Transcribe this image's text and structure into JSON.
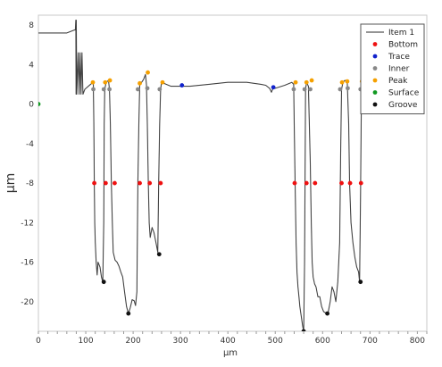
{
  "chart_data": {
    "type": "scatter",
    "xlabel": "µm",
    "ylabel": "µm",
    "xlim": [
      0,
      820
    ],
    "ylim": [
      -23,
      9
    ],
    "x_ticks": [
      0,
      100,
      200,
      300,
      400,
      500,
      600,
      700,
      800
    ],
    "y_ticks": [
      8,
      4,
      0,
      -4,
      -8,
      -12,
      -16,
      -20
    ],
    "grid": true,
    "legend_position": "top-right",
    "legend": [
      {
        "label": "Item 1",
        "color": "#555555",
        "marker": "line"
      },
      {
        "label": "Bottom",
        "color": "#ee1111",
        "marker": "dot"
      },
      {
        "label": "Trace",
        "color": "#1122cc",
        "marker": "dot"
      },
      {
        "label": "Inner",
        "color": "#888888",
        "marker": "dot"
      },
      {
        "label": "Peak",
        "color": "#f5a000",
        "marker": "dot"
      },
      {
        "label": "Surface",
        "color": "#119922",
        "marker": "dot"
      },
      {
        "label": "Groove",
        "color": "#111111",
        "marker": "dot"
      }
    ],
    "series": [
      {
        "name": "Item 1",
        "kind": "line",
        "color": "#555555",
        "points": [
          [
            0,
            7.2
          ],
          [
            60,
            7.2
          ],
          [
            76,
            7.5
          ],
          [
            78,
            7.5
          ],
          [
            79,
            8.5
          ],
          [
            79.5,
            1.0
          ],
          [
            80,
            8.5
          ],
          [
            81,
            1.0
          ],
          [
            84,
            5.2
          ],
          [
            86,
            1.0
          ],
          [
            88,
            5.2
          ],
          [
            90,
            1.0
          ],
          [
            92,
            5.2
          ],
          [
            94,
            1.0
          ],
          [
            98,
            1.5
          ],
          [
            110,
            2.0
          ],
          [
            116,
            2.2
          ],
          [
            117,
            -2
          ],
          [
            118,
            -8
          ],
          [
            119,
            -12
          ],
          [
            120,
            -14
          ],
          [
            122,
            -16
          ],
          [
            124,
            -17.3
          ],
          [
            126,
            -16
          ],
          [
            130,
            -16.5
          ],
          [
            133,
            -17.5
          ],
          [
            136,
            -18.0
          ],
          [
            138,
            -12
          ],
          [
            139,
            -2
          ],
          [
            140,
            1.5
          ],
          [
            143,
            2.2
          ],
          [
            148,
            2.4
          ],
          [
            150,
            1.5
          ],
          [
            152,
            -2
          ],
          [
            154,
            -8
          ],
          [
            156,
            -12
          ],
          [
            158,
            -15
          ],
          [
            162,
            -15.8
          ],
          [
            166,
            -16
          ],
          [
            170,
            -16.4
          ],
          [
            174,
            -17
          ],
          [
            178,
            -17.5
          ],
          [
            182,
            -19
          ],
          [
            186,
            -20.5
          ],
          [
            190,
            -21.2
          ],
          [
            194,
            -20.6
          ],
          [
            198,
            -19.8
          ],
          [
            202,
            -19.9
          ],
          [
            205,
            -20.4
          ],
          [
            208,
            -19
          ],
          [
            210,
            -8
          ],
          [
            212,
            -2
          ],
          [
            214,
            2.0
          ],
          [
            218,
            2.2
          ],
          [
            222,
            2.5
          ],
          [
            226,
            3.0
          ],
          [
            228,
            2.0
          ],
          [
            230,
            -2
          ],
          [
            232,
            -8
          ],
          [
            234,
            -12
          ],
          [
            236,
            -13.5
          ],
          [
            240,
            -12.5
          ],
          [
            244,
            -13
          ],
          [
            248,
            -14
          ],
          [
            252,
            -15
          ],
          [
            254,
            -8
          ],
          [
            256,
            -2
          ],
          [
            258,
            1.5
          ],
          [
            260,
            2.2
          ],
          [
            280,
            1.8
          ],
          [
            320,
            1.8
          ],
          [
            360,
            2.0
          ],
          [
            400,
            2.2
          ],
          [
            440,
            2.2
          ],
          [
            470,
            2.0
          ],
          [
            480,
            1.9
          ],
          [
            488,
            1.6
          ],
          [
            492,
            1.2
          ],
          [
            496,
            1.7
          ],
          [
            500,
            1.6
          ],
          [
            520,
            1.9
          ],
          [
            535,
            2.2
          ],
          [
            539,
            2.0
          ],
          [
            540,
            -2
          ],
          [
            542,
            -8
          ],
          [
            544,
            -14
          ],
          [
            546,
            -17
          ],
          [
            548,
            -18.5
          ],
          [
            550,
            -19.5
          ],
          [
            552,
            -20.5
          ],
          [
            555,
            -21.5
          ],
          [
            558,
            -22.5
          ],
          [
            560,
            -23
          ],
          [
            562,
            -16
          ],
          [
            564,
            1.5
          ],
          [
            566,
            2.2
          ],
          [
            570,
            1.8
          ],
          [
            574,
            -6
          ],
          [
            576,
            -12
          ],
          [
            578,
            -16
          ],
          [
            580,
            -17.5
          ],
          [
            583,
            -18.2
          ],
          [
            586,
            -18.5
          ],
          [
            590,
            -19.5
          ],
          [
            594,
            -19.5
          ],
          [
            598,
            -20.5
          ],
          [
            602,
            -21
          ],
          [
            608,
            -21.2
          ],
          [
            612,
            -21
          ],
          [
            616,
            -20
          ],
          [
            620,
            -18.5
          ],
          [
            624,
            -19
          ],
          [
            628,
            -20
          ],
          [
            632,
            -18
          ],
          [
            636,
            -14
          ],
          [
            638,
            -5
          ],
          [
            640,
            1.5
          ],
          [
            643,
            2.2
          ],
          [
            647,
            2.4
          ],
          [
            652,
            2.2
          ],
          [
            655,
            -2
          ],
          [
            657,
            -8
          ],
          [
            660,
            -12
          ],
          [
            664,
            -14
          ],
          [
            668,
            -15.5
          ],
          [
            672,
            -16.5
          ],
          [
            676,
            -17
          ],
          [
            678,
            -18
          ],
          [
            680,
            -10
          ],
          [
            682,
            1.5
          ],
          [
            684,
            2.3
          ]
        ]
      },
      {
        "name": "Bottom",
        "kind": "markers",
        "color": "#ee1111",
        "points": [
          [
            118,
            -8
          ],
          [
            142,
            -8
          ],
          [
            161,
            -8
          ],
          [
            214,
            -8
          ],
          [
            235,
            -8
          ],
          [
            258,
            -8
          ],
          [
            541,
            -8
          ],
          [
            566,
            -8
          ],
          [
            584,
            -8
          ],
          [
            640,
            -8
          ],
          [
            658,
            -8
          ],
          [
            681,
            -8
          ]
        ]
      },
      {
        "name": "Trace",
        "kind": "markers",
        "color": "#1122cc",
        "points": [
          [
            303,
            1.9
          ],
          [
            496,
            1.7
          ]
        ]
      },
      {
        "name": "Inner",
        "kind": "markers",
        "color": "#888888",
        "points": [
          [
            116,
            1.5
          ],
          [
            138,
            1.5
          ],
          [
            150,
            1.5
          ],
          [
            210,
            1.5
          ],
          [
            230,
            1.6
          ],
          [
            256,
            1.5
          ],
          [
            539,
            1.5
          ],
          [
            562,
            1.5
          ],
          [
            574,
            1.5
          ],
          [
            637,
            1.5
          ],
          [
            653,
            1.6
          ],
          [
            680,
            1.5
          ]
        ]
      },
      {
        "name": "Peak",
        "kind": "markers",
        "color": "#f5a000",
        "points": [
          [
            115,
            2.2
          ],
          [
            141,
            2.2
          ],
          [
            151,
            2.4
          ],
          [
            214,
            2.1
          ],
          [
            231,
            3.2
          ],
          [
            262,
            2.2
          ],
          [
            543,
            2.2
          ],
          [
            566,
            2.2
          ],
          [
            577,
            2.4
          ],
          [
            641,
            2.2
          ],
          [
            652,
            2.3
          ],
          [
            683,
            2.3
          ]
        ]
      },
      {
        "name": "Surface",
        "kind": "markers",
        "color": "#119922",
        "points": [
          [
            0,
            0
          ]
        ]
      },
      {
        "name": "Groove",
        "kind": "markers",
        "color": "#111111",
        "points": [
          [
            138,
            -18
          ],
          [
            190,
            -21.2
          ],
          [
            255,
            -15.2
          ],
          [
            560,
            -23
          ],
          [
            610,
            -21.2
          ],
          [
            680,
            -18
          ]
        ]
      }
    ]
  }
}
